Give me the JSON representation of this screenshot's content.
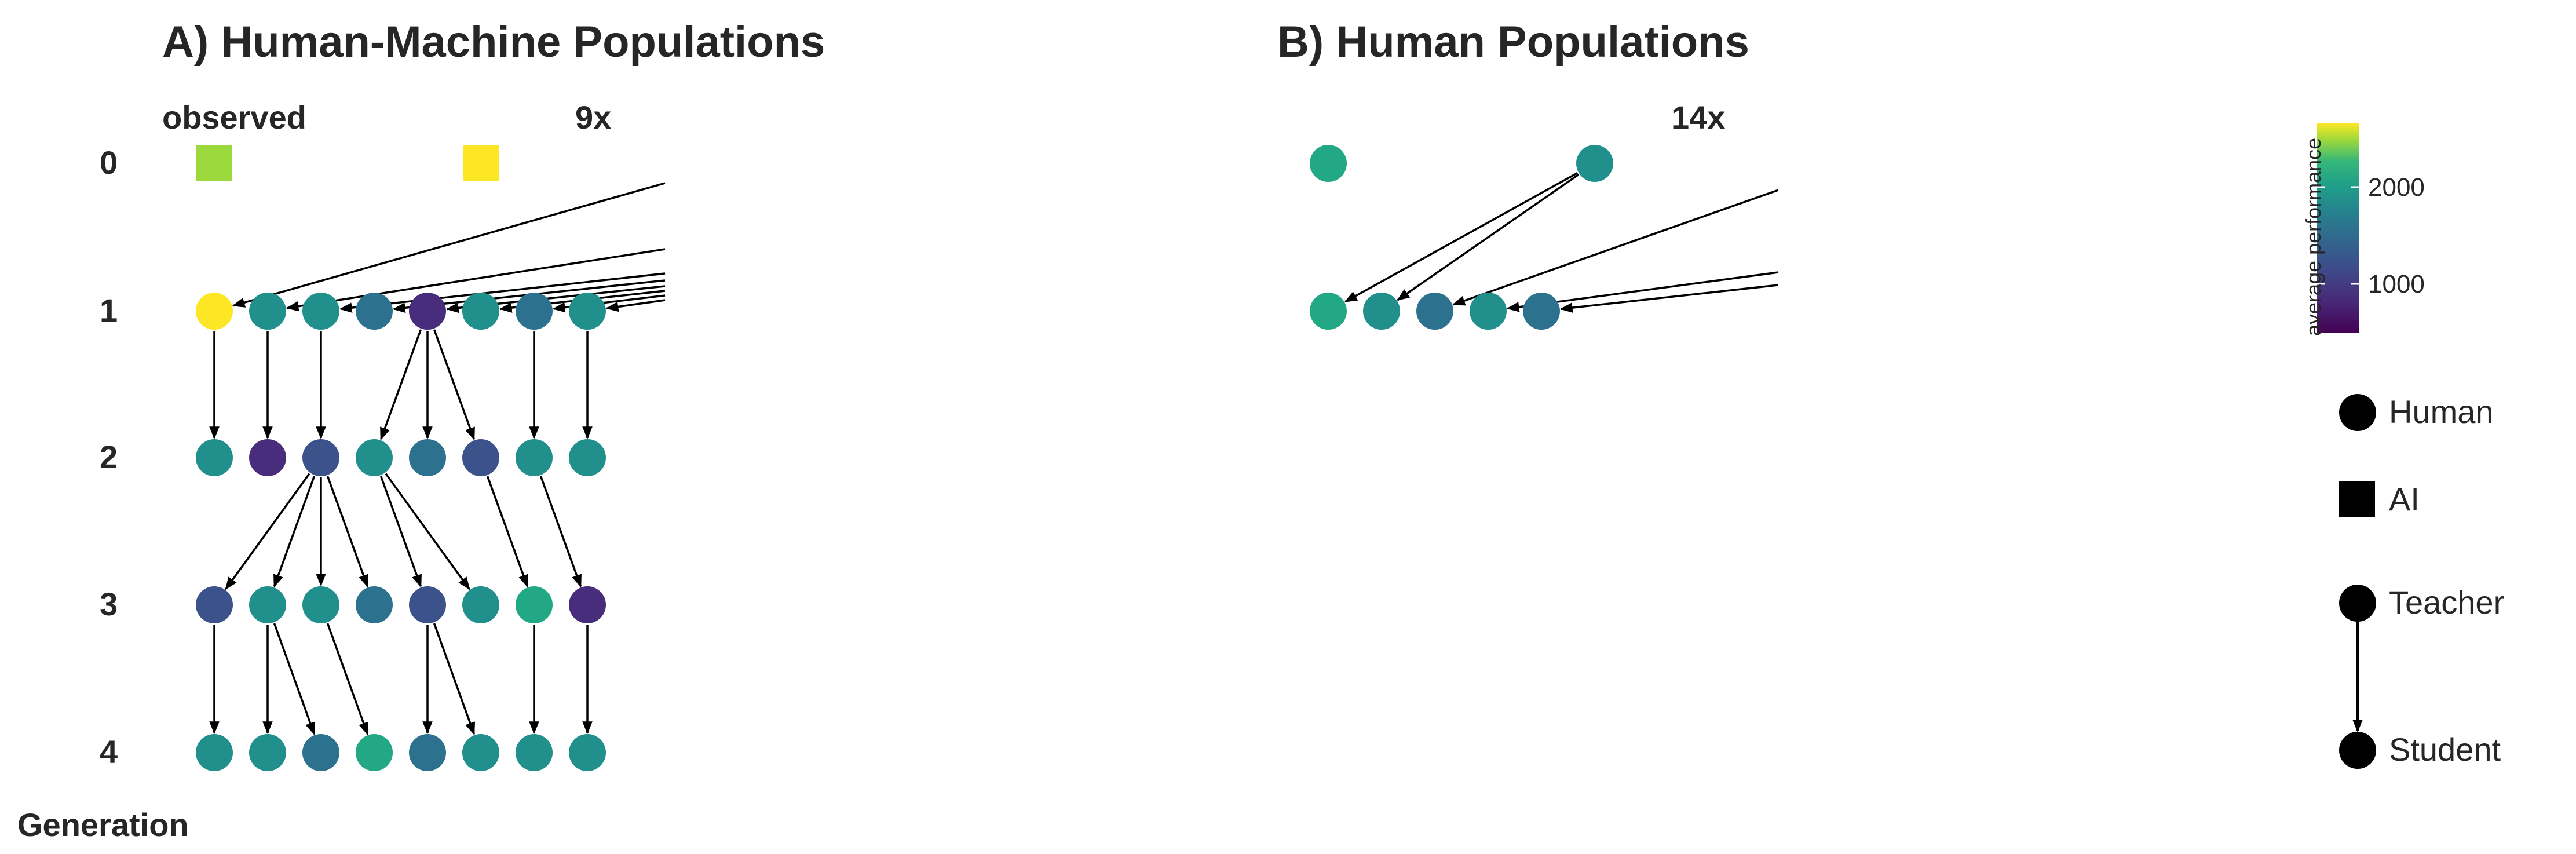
{
  "panels": {
    "a": {
      "title": "A) Human-Machine Populations",
      "observed_label": "observed",
      "count_label": "9x"
    },
    "b": {
      "title": "B) Human Populations",
      "count_label": "14x"
    }
  },
  "axis": {
    "label": "Generation",
    "generations": [
      "0",
      "1",
      "2",
      "3",
      "4"
    ]
  },
  "colorbar": {
    "title": "average performance",
    "ticks": [
      "2000",
      "1000"
    ]
  },
  "legend": {
    "human": "Human",
    "ai": "AI",
    "teacher": "Teacher",
    "student": "Student"
  },
  "colors": {
    "yellow": "#FDE725",
    "lime": "#9BD93C",
    "teal": "#21908C",
    "teal_dark": "#277F8E",
    "blue_teal": "#2C728E",
    "blue": "#3B528B",
    "purple": "#472D7B",
    "green": "#22A884",
    "green_light": "#35B779"
  }
}
